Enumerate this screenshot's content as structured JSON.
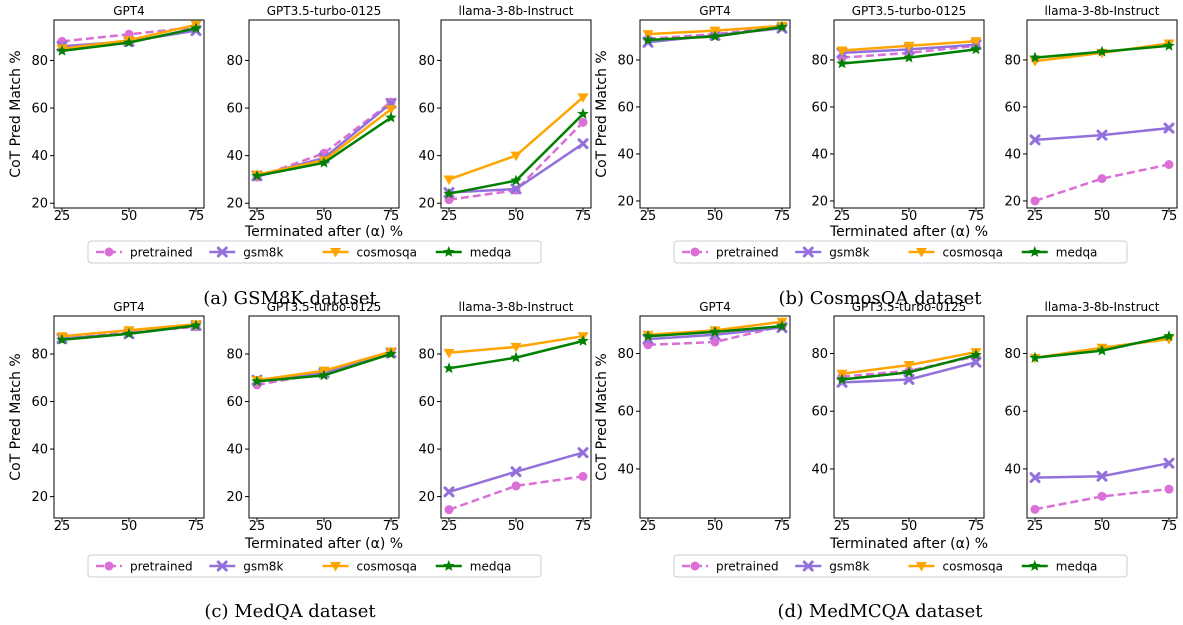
{
  "series_names": [
    "pretrained",
    "gsm8k",
    "cosmosqa",
    "medqa"
  ],
  "colors": {
    "pretrained": "#da70d6",
    "gsm8k": "#9370db",
    "cosmosqa": "#ffa500",
    "medqa": "#008000"
  },
  "markers": {
    "pretrained": "circle",
    "gsm8k": "x",
    "cosmosqa": "triangle-down",
    "medqa": "star"
  },
  "dashed": {
    "pretrained": true,
    "gsm8k": false,
    "cosmosqa": false,
    "medqa": false
  },
  "chart_data": [
    {
      "type": "line",
      "caption": "(a) GSM8K dataset",
      "ylabel": "CoT Pred Match %",
      "xlabel": "Terminated after (α) %",
      "legend": [
        "pretrained",
        "gsm8k",
        "cosmosqa",
        "medqa"
      ],
      "legend_position": "bottom-center",
      "subplots": [
        {
          "title": "GPT4",
          "x": [
            25,
            50,
            75
          ],
          "ylim": [
            18,
            97
          ],
          "yticks": [
            20,
            40,
            60,
            80
          ],
          "series": [
            {
              "name": "pretrained",
              "values": [
                88,
                91,
                94
              ]
            },
            {
              "name": "gsm8k",
              "values": [
                86,
                88,
                92.5
              ]
            },
            {
              "name": "cosmosqa",
              "values": [
                85,
                88.5,
                95
              ]
            },
            {
              "name": "medqa",
              "values": [
                84,
                87.5,
                93.5
              ]
            }
          ]
        },
        {
          "title": "GPT3.5-turbo-0125",
          "x": [
            25,
            50,
            75
          ],
          "ylim": [
            18,
            97
          ],
          "yticks": [
            20,
            40,
            60,
            80
          ],
          "series": [
            {
              "name": "pretrained",
              "values": [
                31,
                41,
                62.5
              ]
            },
            {
              "name": "gsm8k",
              "values": [
                31.5,
                39,
                62
              ]
            },
            {
              "name": "cosmosqa",
              "values": [
                32,
                38,
                59.5
              ]
            },
            {
              "name": "medqa",
              "values": [
                31.5,
                37,
                56
              ]
            }
          ]
        },
        {
          "title": "llama-3-8b-Instruct",
          "x": [
            25,
            50,
            75
          ],
          "ylim": [
            18,
            97
          ],
          "yticks": [
            20,
            40,
            60,
            80
          ],
          "series": [
            {
              "name": "pretrained",
              "values": [
                21.5,
                25.5,
                54
              ]
            },
            {
              "name": "gsm8k",
              "values": [
                24.5,
                26,
                45
              ]
            },
            {
              "name": "cosmosqa",
              "values": [
                30,
                40,
                64.5
              ]
            },
            {
              "name": "medqa",
              "values": [
                24,
                29.5,
                57.5
              ]
            }
          ]
        }
      ]
    },
    {
      "type": "line",
      "caption": "(b) CosmosQA dataset",
      "ylabel": "CoT Pred Match %",
      "xlabel": "Terminated after (α) %",
      "legend": [
        "pretrained",
        "gsm8k",
        "cosmosqa",
        "medqa"
      ],
      "legend_position": "bottom-center",
      "subplots": [
        {
          "title": "GPT4",
          "x": [
            25,
            50,
            75
          ],
          "ylim": [
            17,
            97
          ],
          "yticks": [
            20,
            40,
            60,
            80
          ],
          "series": [
            {
              "name": "pretrained",
              "values": [
                89,
                91,
                94
              ]
            },
            {
              "name": "gsm8k",
              "values": [
                87.5,
                90.5,
                93.5
              ]
            },
            {
              "name": "cosmosqa",
              "values": [
                91,
                92.5,
                94.5
              ]
            },
            {
              "name": "medqa",
              "values": [
                88.5,
                90,
                94
              ]
            }
          ]
        },
        {
          "title": "GPT3.5-turbo-0125",
          "x": [
            25,
            50,
            75
          ],
          "ylim": [
            17,
            97
          ],
          "yticks": [
            20,
            40,
            60,
            80
          ],
          "series": [
            {
              "name": "pretrained",
              "values": [
                81,
                83,
                86
              ]
            },
            {
              "name": "gsm8k",
              "values": [
                83,
                84.5,
                86.5
              ]
            },
            {
              "name": "cosmosqa",
              "values": [
                84,
                86,
                88
              ]
            },
            {
              "name": "medqa",
              "values": [
                78.5,
                81,
                84.5
              ]
            }
          ]
        },
        {
          "title": "llama-3-8b-Instruct",
          "x": [
            25,
            50,
            75
          ],
          "ylim": [
            17,
            97
          ],
          "yticks": [
            20,
            40,
            60,
            80
          ],
          "series": [
            {
              "name": "pretrained",
              "values": [
                20,
                29.5,
                35.5
              ]
            },
            {
              "name": "gsm8k",
              "values": [
                46,
                48,
                51
              ]
            },
            {
              "name": "cosmosqa",
              "values": [
                79.5,
                83,
                87
              ]
            },
            {
              "name": "medqa",
              "values": [
                81,
                83.5,
                86
              ]
            }
          ]
        }
      ]
    },
    {
      "type": "line",
      "caption": "(c) MedQA dataset",
      "ylabel": "CoT Pred Match %",
      "xlabel": "Terminated after (α) %",
      "legend": [
        "pretrained",
        "gsm8k",
        "cosmosqa",
        "medqa"
      ],
      "legend_position": "bottom-center",
      "subplots": [
        {
          "title": "GPT4",
          "x": [
            25,
            50,
            75
          ],
          "ylim": [
            11,
            96
          ],
          "yticks": [
            20,
            40,
            60,
            80
          ],
          "series": [
            {
              "name": "pretrained",
              "values": [
                86.5,
                89,
                91.5
              ]
            },
            {
              "name": "gsm8k",
              "values": [
                86.5,
                88.5,
                92
              ]
            },
            {
              "name": "cosmosqa",
              "values": [
                87.5,
                90,
                92.5
              ]
            },
            {
              "name": "medqa",
              "values": [
                86,
                88.5,
                92
              ]
            }
          ]
        },
        {
          "title": "GPT3.5-turbo-0125",
          "x": [
            25,
            50,
            75
          ],
          "ylim": [
            11,
            96
          ],
          "yticks": [
            20,
            40,
            60,
            80
          ],
          "series": [
            {
              "name": "pretrained",
              "values": [
                67,
                72,
                81
              ]
            },
            {
              "name": "gsm8k",
              "values": [
                69,
                72,
                80.5
              ]
            },
            {
              "name": "cosmosqa",
              "values": [
                69,
                73,
                81
              ]
            },
            {
              "name": "medqa",
              "values": [
                68.5,
                71,
                80
              ]
            }
          ]
        },
        {
          "title": "llama-3-8b-Instruct",
          "x": [
            25,
            50,
            75
          ],
          "ylim": [
            11,
            96
          ],
          "yticks": [
            20,
            40,
            60,
            80
          ],
          "series": [
            {
              "name": "pretrained",
              "values": [
                14.5,
                24.5,
                28.5
              ]
            },
            {
              "name": "gsm8k",
              "values": [
                22,
                30.5,
                38.5
              ]
            },
            {
              "name": "cosmosqa",
              "values": [
                80.5,
                83,
                87.5
              ]
            },
            {
              "name": "medqa",
              "values": [
                74,
                78.5,
                85.5
              ]
            }
          ]
        }
      ]
    },
    {
      "type": "line",
      "caption": "(d) MedMCQA dataset",
      "ylabel": "CoT Pred Match %",
      "xlabel": "Terminated after (α) %",
      "legend": [
        "pretrained",
        "gsm8k",
        "cosmosqa",
        "medqa"
      ],
      "legend_position": "bottom-center",
      "subplots": [
        {
          "title": "GPT4",
          "x": [
            25,
            50,
            75
          ],
          "ylim": [
            23,
            93
          ],
          "yticks": [
            40,
            60,
            80
          ],
          "series": [
            {
              "name": "pretrained",
              "values": [
                83,
                84,
                89.5
              ]
            },
            {
              "name": "gsm8k",
              "values": [
                85,
                86.5,
                89
              ]
            },
            {
              "name": "cosmosqa",
              "values": [
                86.5,
                88,
                91
              ]
            },
            {
              "name": "medqa",
              "values": [
                86,
                87.5,
                89.5
              ]
            }
          ]
        },
        {
          "title": "GPT3.5-turbo-0125",
          "x": [
            25,
            50,
            75
          ],
          "ylim": [
            23,
            93
          ],
          "yticks": [
            40,
            60,
            80
          ],
          "series": [
            {
              "name": "pretrained",
              "values": [
                72,
                74,
                79
              ]
            },
            {
              "name": "gsm8k",
              "values": [
                70,
                71,
                77
              ]
            },
            {
              "name": "cosmosqa",
              "values": [
                73,
                76,
                80.5
              ]
            },
            {
              "name": "medqa",
              "values": [
                71,
                73.5,
                79.5
              ]
            }
          ]
        },
        {
          "title": "llama-3-8b-Instruct",
          "x": [
            25,
            50,
            75
          ],
          "ylim": [
            23,
            93
          ],
          "yticks": [
            40,
            60,
            80
          ],
          "series": [
            {
              "name": "pretrained",
              "values": [
                26,
                30.5,
                33
              ]
            },
            {
              "name": "gsm8k",
              "values": [
                37,
                37.5,
                42
              ]
            },
            {
              "name": "cosmosqa",
              "values": [
                78.5,
                82,
                85
              ]
            },
            {
              "name": "medqa",
              "values": [
                78.5,
                81,
                86
              ]
            }
          ]
        }
      ]
    }
  ]
}
